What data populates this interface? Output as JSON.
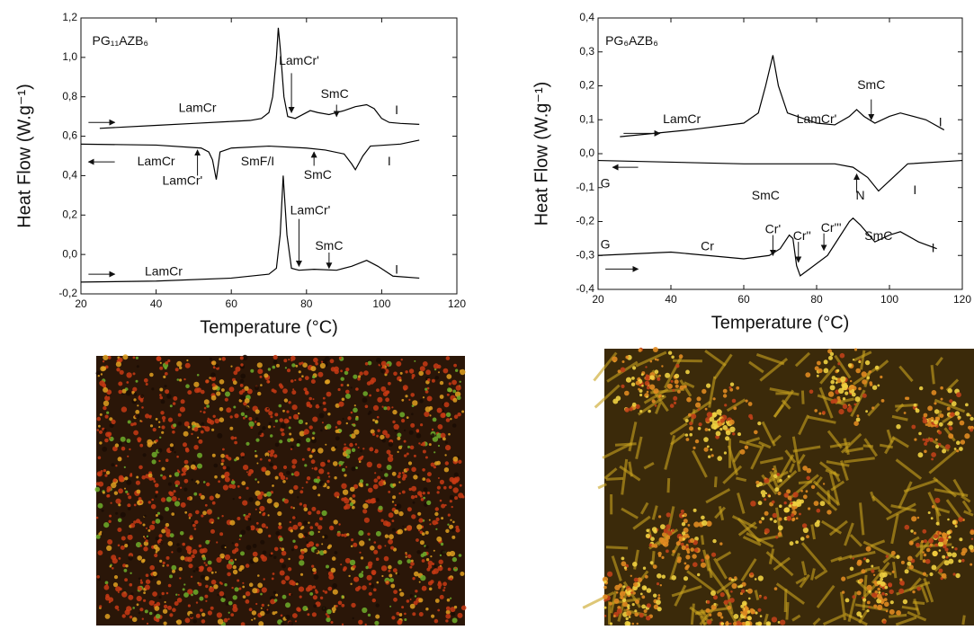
{
  "chart_data": [
    {
      "type": "line",
      "xlabel": "Temperature (°C)",
      "ylabel": "Heat Flow (W.g⁻¹)",
      "xlim": [
        20,
        120
      ],
      "xticks": [
        20,
        40,
        60,
        80,
        100,
        120
      ],
      "ylim": [
        -0.2,
        1.2
      ],
      "yticks": [
        {
          "value": -0.2,
          "label": "-0,2"
        },
        {
          "value": 0.0,
          "label": "0,0"
        },
        {
          "value": 0.2,
          "label": "0,2"
        },
        {
          "value": 0.4,
          "label": "0,4"
        },
        {
          "value": 0.6,
          "label": "0,6"
        },
        {
          "value": 0.8,
          "label": "0,8"
        },
        {
          "value": 1.0,
          "label": "1,0"
        },
        {
          "value": 1.2,
          "label": "1,2"
        }
      ],
      "series": [
        {
          "color": "#000000",
          "x": [
            25,
            30,
            40,
            50,
            60,
            65,
            68,
            70,
            71,
            72,
            72.5,
            73,
            74,
            75,
            77,
            79,
            81,
            83,
            86,
            90,
            93,
            96,
            98,
            100,
            102,
            105,
            110
          ],
          "values": [
            0.64,
            0.645,
            0.655,
            0.665,
            0.675,
            0.68,
            0.69,
            0.72,
            0.8,
            1.0,
            1.15,
            1.05,
            0.8,
            0.7,
            0.69,
            0.71,
            0.73,
            0.72,
            0.71,
            0.73,
            0.75,
            0.76,
            0.74,
            0.69,
            0.67,
            0.665,
            0.66
          ]
        },
        {
          "color": "#000000",
          "x": [
            20,
            40,
            52,
            54,
            55,
            56,
            57,
            60,
            70,
            80,
            85,
            90,
            92,
            93,
            95,
            97,
            105,
            110
          ],
          "values": [
            0.56,
            0.555,
            0.54,
            0.52,
            0.48,
            0.38,
            0.52,
            0.54,
            0.55,
            0.54,
            0.53,
            0.51,
            0.46,
            0.43,
            0.5,
            0.55,
            0.56,
            0.58
          ]
        },
        {
          "color": "#000000",
          "x": [
            20,
            40,
            60,
            70,
            72,
            73,
            73.8,
            74.8,
            76,
            78,
            82,
            88,
            92,
            96,
            99,
            103,
            110
          ],
          "values": [
            -0.14,
            -0.135,
            -0.12,
            -0.1,
            -0.07,
            0.1,
            0.4,
            0.1,
            -0.07,
            -0.08,
            -0.075,
            -0.08,
            -0.06,
            -0.03,
            -0.06,
            -0.11,
            -0.12
          ]
        }
      ],
      "annotations": [
        {
          "text": "PG₁₁AZB₆",
          "x": 23,
          "y": 1.08
        },
        {
          "text": "LamCr",
          "x": 51,
          "y": 0.74
        },
        {
          "text": "LamCr'",
          "x": 78,
          "y": 0.98
        },
        {
          "text": "SmC",
          "x": 87.5,
          "y": 0.81
        },
        {
          "text": "I",
          "x": 104,
          "y": 0.73
        },
        {
          "text": "LamCr",
          "x": 40,
          "y": 0.47
        },
        {
          "text": "SmF/I",
          "x": 67,
          "y": 0.47
        },
        {
          "text": "LamCr'",
          "x": 47,
          "y": 0.37
        },
        {
          "text": "SmC",
          "x": 83,
          "y": 0.4
        },
        {
          "text": "I",
          "x": 102,
          "y": 0.47
        },
        {
          "text": "LamCr",
          "x": 42,
          "y": -0.09
        },
        {
          "text": "LamCr'",
          "x": 81,
          "y": 0.22
        },
        {
          "text": "SmC",
          "x": 86,
          "y": 0.04
        },
        {
          "text": "I",
          "x": 104,
          "y": -0.08
        }
      ],
      "arrows": [
        {
          "x": [
            76,
            76
          ],
          "y": [
            0.92,
            0.72
          ]
        },
        {
          "x": [
            88,
            88
          ],
          "y": [
            0.76,
            0.7
          ]
        },
        {
          "x": [
            51,
            51
          ],
          "y": [
            0.4,
            0.53
          ]
        },
        {
          "x": [
            82,
            82
          ],
          "y": [
            0.45,
            0.52
          ]
        },
        {
          "x": [
            78,
            78
          ],
          "y": [
            0.18,
            -0.06
          ]
        },
        {
          "x": [
            86,
            86
          ],
          "y": [
            0.01,
            -0.07
          ]
        },
        {
          "x": [
            22,
            29
          ],
          "y": [
            0.67,
            0.67
          ]
        },
        {
          "x": [
            29,
            22
          ],
          "y": [
            0.47,
            0.47
          ]
        },
        {
          "x": [
            22,
            29
          ],
          "y": [
            -0.1,
            -0.1
          ]
        }
      ]
    },
    {
      "type": "line",
      "xlabel": "Temperature (°C)",
      "ylabel": "Heat Flow (W.g⁻¹)",
      "xlim": [
        20,
        120
      ],
      "xticks": [
        20,
        40,
        60,
        80,
        100,
        120
      ],
      "ylim": [
        -0.4,
        0.4
      ],
      "yticks": [
        {
          "value": -0.4,
          "label": "-0,4"
        },
        {
          "value": -0.3,
          "label": "-0,3"
        },
        {
          "value": -0.2,
          "label": "-0,2"
        },
        {
          "value": -0.1,
          "label": "-0,1"
        },
        {
          "value": 0.0,
          "label": "0,0"
        },
        {
          "value": 0.1,
          "label": "0,1"
        },
        {
          "value": 0.2,
          "label": "0,2"
        },
        {
          "value": 0.3,
          "label": "0,3"
        },
        {
          "value": 0.4,
          "label": "0,4"
        }
      ],
      "series": [
        {
          "color": "#000000",
          "x": [
            26,
            45,
            60,
            64,
            66,
            68,
            69.5,
            72,
            80,
            85,
            89,
            91,
            93,
            96,
            100,
            103,
            110,
            115
          ],
          "values": [
            0.05,
            0.07,
            0.09,
            0.12,
            0.2,
            0.29,
            0.2,
            0.12,
            0.09,
            0.085,
            0.11,
            0.13,
            0.11,
            0.09,
            0.11,
            0.12,
            0.1,
            0.07
          ]
        },
        {
          "color": "#000000",
          "x": [
            20,
            60,
            85,
            90,
            94,
            97,
            100,
            105,
            120
          ],
          "values": [
            -0.02,
            -0.03,
            -0.03,
            -0.04,
            -0.07,
            -0.11,
            -0.08,
            -0.03,
            -0.02
          ]
        },
        {
          "color": "#000000",
          "x": [
            20,
            40,
            60,
            67,
            70,
            72.5,
            73.5,
            74.5,
            75.5,
            78,
            83,
            86,
            89,
            90,
            92,
            96,
            100,
            103,
            108,
            113
          ],
          "values": [
            -0.3,
            -0.29,
            -0.31,
            -0.3,
            -0.28,
            -0.24,
            -0.25,
            -0.33,
            -0.36,
            -0.34,
            -0.3,
            -0.25,
            -0.2,
            -0.19,
            -0.21,
            -0.26,
            -0.24,
            -0.23,
            -0.26,
            -0.28
          ]
        }
      ],
      "annotations": [
        {
          "text": "PG₆AZB₆",
          "x": 22,
          "y": 0.33
        },
        {
          "text": "LamCr",
          "x": 43,
          "y": 0.1
        },
        {
          "text": "LamCr'",
          "x": 80,
          "y": 0.1
        },
        {
          "text": "SmC",
          "x": 95,
          "y": 0.2
        },
        {
          "text": "I",
          "x": 114,
          "y": 0.09
        },
        {
          "text": "G",
          "x": 22,
          "y": -0.09
        },
        {
          "text": "SmC",
          "x": 66,
          "y": -0.125
        },
        {
          "text": "N",
          "x": 92,
          "y": -0.125
        },
        {
          "text": "I",
          "x": 107,
          "y": -0.11
        },
        {
          "text": "G",
          "x": 22,
          "y": -0.27
        },
        {
          "text": "Cr",
          "x": 50,
          "y": -0.275
        },
        {
          "text": "Cr'",
          "x": 68,
          "y": -0.225
        },
        {
          "text": "Cr''",
          "x": 76,
          "y": -0.245
        },
        {
          "text": "Cr'''",
          "x": 84,
          "y": -0.22
        },
        {
          "text": "SmC",
          "x": 97,
          "y": -0.245
        },
        {
          "text": "I",
          "x": 112,
          "y": -0.28
        }
      ],
      "arrows": [
        {
          "x": [
            95,
            95
          ],
          "y": [
            0.16,
            0.1
          ]
        },
        {
          "x": [
            91,
            91
          ],
          "y": [
            -0.115,
            -0.06
          ]
        },
        {
          "x": [
            68,
            68
          ],
          "y": [
            -0.24,
            -0.3
          ]
        },
        {
          "x": [
            75,
            75
          ],
          "y": [
            -0.26,
            -0.32
          ]
        },
        {
          "x": [
            82,
            82
          ],
          "y": [
            -0.235,
            -0.285
          ]
        },
        {
          "x": [
            27,
            37
          ],
          "y": [
            0.06,
            0.06
          ]
        },
        {
          "x": [
            31,
            24
          ],
          "y": [
            -0.04,
            -0.04
          ]
        },
        {
          "x": [
            22,
            31
          ],
          "y": [
            -0.34,
            -0.34
          ]
        }
      ]
    }
  ]
}
